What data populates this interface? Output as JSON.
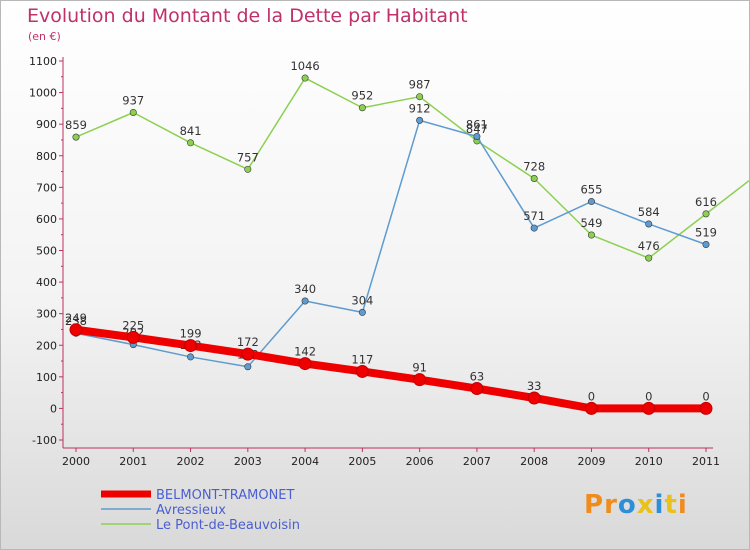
{
  "title": "Evolution du Montant de la Dette par Habitant",
  "unit": "(en €)",
  "logo": {
    "text": "Proxiti",
    "colors": [
      "#f08c1e",
      "#f08c1e",
      "#2e8fd8",
      "#e8c21a",
      "#2e8fd8",
      "#e8c21a",
      "#f08c1e"
    ]
  },
  "chart_data": {
    "type": "line",
    "x": [
      "2000",
      "2001",
      "2002",
      "2003",
      "2004",
      "2005",
      "2006",
      "2007",
      "2008",
      "2009",
      "2010",
      "2011"
    ],
    "ylim": [
      -100,
      1100
    ],
    "yticks": [
      "-100",
      "0",
      "100",
      "200",
      "300",
      "400",
      "500",
      "600",
      "700",
      "800",
      "900",
      "1000",
      "1100"
    ],
    "grid": false,
    "legend_position": "bottom-left",
    "series": [
      {
        "name": "Le Pont-de-Beauvoisin",
        "color": "#8cd050",
        "values": [
          859,
          937,
          841,
          757,
          1046,
          952,
          987,
          847,
          728,
          549,
          476,
          616
        ],
        "labels": [
          "859",
          "937",
          "841",
          "757",
          "1046",
          "952",
          "987",
          "847",
          "728",
          "549",
          "476",
          "616"
        ]
      },
      {
        "name": "Avressieux",
        "color": "#5e9bd0",
        "values": [
          238,
          202,
          163,
          132,
          340,
          304,
          912,
          861,
          571,
          655,
          584,
          519
        ],
        "labels": [
          "238",
          "202",
          "163",
          "132",
          "340",
          "304",
          "912",
          "861",
          "571",
          "655",
          "584",
          "519"
        ]
      },
      {
        "name": "BELMONT-TRAMONET",
        "color": "#ee0000",
        "values": [
          249,
          225,
          199,
          172,
          142,
          117,
          91,
          63,
          33,
          0,
          0,
          0
        ],
        "labels": [
          "249",
          "225",
          "199",
          "172",
          "142",
          "117",
          "91",
          "63",
          "33",
          "0",
          "0",
          "0"
        ]
      }
    ]
  }
}
